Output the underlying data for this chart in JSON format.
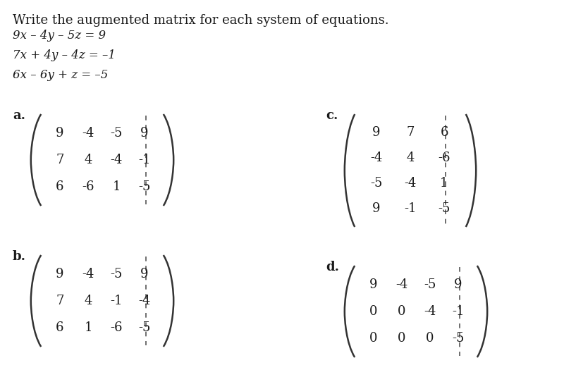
{
  "title": "Write the augmented matrix for each system of equations.",
  "equations": [
    "9x – 4y – 5z = 9",
    "7x + 4y – 4z = –1",
    "6x – 6y + z = –5"
  ],
  "labels": [
    "a.",
    "b.",
    "c.",
    "d."
  ],
  "matrix_a": [
    [
      "9",
      "-4",
      "-5",
      "9"
    ],
    [
      "7",
      "4",
      "-4",
      "-1"
    ],
    [
      "6",
      "-6",
      "1",
      "-5"
    ]
  ],
  "matrix_b": [
    [
      "9",
      "-4",
      "-5",
      "9"
    ],
    [
      "7",
      "4",
      "-1",
      "-4"
    ],
    [
      "6",
      "1",
      "-6",
      "-5"
    ]
  ],
  "matrix_c": [
    [
      "9",
      "7",
      "6"
    ],
    [
      "-4",
      "4",
      "-6"
    ],
    [
      "-5",
      "-4",
      "1"
    ],
    [
      "9",
      "-1",
      "-5"
    ]
  ],
  "matrix_d": [
    [
      "9",
      "-4",
      "-5",
      "9"
    ],
    [
      "0",
      "0",
      "-4",
      "-1"
    ],
    [
      "0",
      "0",
      "0",
      "-5"
    ]
  ],
  "bg_color": "#ffffff",
  "text_color": "#1a1a1a",
  "font_size_title": 13,
  "font_size_eq": 12,
  "font_size_label": 13,
  "font_size_matrix": 13
}
